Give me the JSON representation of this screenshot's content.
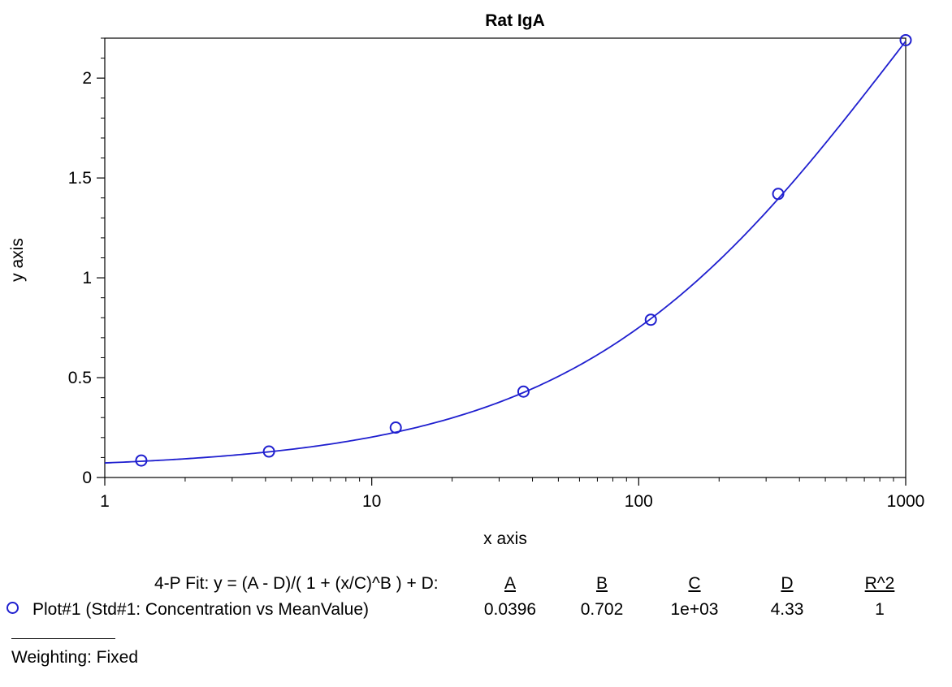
{
  "chart_data": {
    "type": "scatter",
    "title": "Rat IgA",
    "xlabel": "x axis",
    "ylabel": "y axis",
    "xscale": "log",
    "xlim": [
      1,
      1000
    ],
    "ylim": [
      0,
      2.2
    ],
    "x_ticks": [
      {
        "value": 1,
        "label": "1"
      },
      {
        "value": 10,
        "label": "10"
      },
      {
        "value": 100,
        "label": "100"
      },
      {
        "value": 1000,
        "label": "1000"
      }
    ],
    "y_ticks": [
      {
        "value": 0,
        "label": "0"
      },
      {
        "value": 0.5,
        "label": "0.5"
      },
      {
        "value": 1,
        "label": "1"
      },
      {
        "value": 1.5,
        "label": "1.5"
      },
      {
        "value": 2,
        "label": "2"
      }
    ],
    "grid": false,
    "series": [
      {
        "name": "Plot#1 (Std#1: Concentration vs MeanValue)",
        "color": "#1f1fcf",
        "marker": "circle",
        "x": [
          1.37,
          4.12,
          12.3,
          37.0,
          111,
          333,
          1000
        ],
        "y": [
          0.085,
          0.13,
          0.25,
          0.43,
          0.79,
          1.42,
          2.19
        ]
      }
    ],
    "fit": {
      "label": "4-P Fit:  y = (A - D)/( 1 + (x/C)^B ) + D:",
      "headers": [
        "A",
        "B",
        "C",
        "D",
        "R^2"
      ],
      "values": [
        "0.0396",
        "0.702",
        "1e+03",
        "4.33",
        "1"
      ],
      "params": {
        "A": 0.0396,
        "B": 0.702,
        "C": 1000,
        "D": 4.33
      }
    },
    "weighting": "Weighting: Fixed"
  }
}
